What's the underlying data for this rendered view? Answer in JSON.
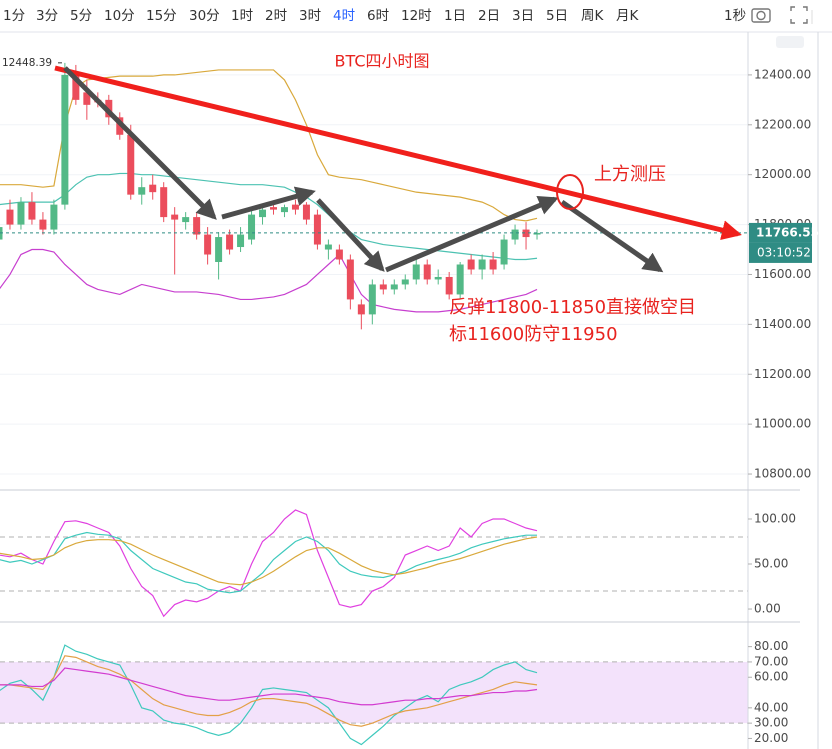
{
  "toolbar": {
    "intervals": [
      "1分",
      "3分",
      "5分",
      "10分",
      "15分",
      "30分",
      "1时",
      "2时",
      "3时",
      "4时",
      "6时",
      "12时",
      "1日",
      "2日",
      "3日",
      "5日",
      "周K",
      "月K"
    ],
    "active": "4时",
    "active_color": "#2962ff",
    "timer": "1秒"
  },
  "chart_data": [
    {
      "type": "candlestick",
      "title": "BTC四小时图",
      "annotations": [
        "上方测压",
        "反弹11800-11850直接做空目",
        "标11600防守11950"
      ],
      "categories": [
        null,
        null,
        null,
        null,
        null,
        null,
        null,
        null,
        null,
        null,
        null,
        null,
        null,
        null,
        null,
        null,
        null,
        null,
        null,
        null,
        null,
        null,
        null,
        null,
        null,
        null,
        null,
        null,
        null,
        null,
        null,
        null,
        null,
        null,
        null,
        null,
        null,
        null,
        null,
        null,
        null,
        null,
        null,
        null,
        null,
        null,
        null,
        null,
        null,
        null
      ],
      "open": [
        11740,
        11860,
        11800,
        11890,
        11820,
        11780,
        11880,
        12400,
        12330,
        12300,
        12300,
        12230,
        12160,
        11920,
        11960,
        11950,
        11840,
        11810,
        11830,
        11760,
        11650,
        11760,
        11710,
        11740,
        11830,
        11870,
        11850,
        11880,
        11880,
        11840,
        11700,
        11700,
        11660,
        11480,
        11440,
        11560,
        11540,
        11560,
        11580,
        11640,
        11580,
        11590,
        11520,
        11660,
        11620,
        11660,
        11640,
        11740,
        11780,
        11760
      ],
      "high": [
        11800,
        11900,
        11910,
        11930,
        11850,
        11900,
        12448.39,
        12440,
        12380,
        12330,
        12320,
        12250,
        12200,
        11990,
        12000,
        11970,
        11870,
        11850,
        11850,
        11790,
        11770,
        11780,
        11790,
        11860,
        11880,
        11890,
        11880,
        11900,
        11890,
        11860,
        11740,
        11720,
        11680,
        11500,
        11580,
        11580,
        11580,
        11600,
        11660,
        11660,
        11620,
        11610,
        11650,
        11680,
        11680,
        11690,
        11760,
        11800,
        11810,
        11780
      ],
      "low": [
        11720,
        11780,
        11780,
        11800,
        11760,
        11760,
        11860,
        12280,
        12220,
        12270,
        12200,
        12140,
        11900,
        11880,
        11900,
        11810,
        11600,
        11780,
        11740,
        11640,
        11580,
        11680,
        11690,
        11720,
        11800,
        11840,
        11830,
        11840,
        11800,
        11700,
        11660,
        11640,
        11460,
        11380,
        11400,
        11520,
        11520,
        11540,
        11560,
        11560,
        11560,
        11500,
        11500,
        11600,
        11580,
        11600,
        11620,
        11720,
        11700,
        11740
      ],
      "close": [
        11790,
        11800,
        11890,
        11820,
        11780,
        11880,
        12400,
        12300,
        12280,
        12290,
        12230,
        12160,
        11920,
        11950,
        11930,
        11830,
        11820,
        11830,
        11760,
        11680,
        11750,
        11700,
        11760,
        11840,
        11860,
        11860,
        11870,
        11860,
        11820,
        11720,
        11720,
        11660,
        11500,
        11440,
        11560,
        11540,
        11560,
        11580,
        11640,
        11580,
        11590,
        11520,
        11640,
        11620,
        11660,
        11620,
        11740,
        11780,
        11750,
        11766.55
      ],
      "up_color": "#53b987",
      "down_color": "#eb4d5c",
      "series": [
        {
          "color": "#d9a93c",
          "values": [
            11960,
            11960,
            11960,
            11955,
            11950,
            11955,
            12200,
            12350,
            12380,
            12385,
            12390,
            12395,
            12395,
            12395,
            12395,
            12400,
            12400,
            12405,
            12410,
            12415,
            12420,
            12420,
            12420,
            12420,
            12420,
            12420,
            12380,
            12300,
            12200,
            12080,
            12000,
            11990,
            11985,
            11980,
            11970,
            11960,
            11950,
            11940,
            11930,
            11925,
            11920,
            11915,
            11910,
            11900,
            11890,
            11870,
            11840,
            11820,
            11815,
            11825
          ]
        },
        {
          "color": "#4cc2b2",
          "values": [
            11880,
            11885,
            11890,
            11890,
            11890,
            11890,
            11920,
            11960,
            11990,
            12000,
            12000,
            12005,
            12005,
            12000,
            12000,
            11995,
            11990,
            11985,
            11980,
            11975,
            11970,
            11965,
            11960,
            11960,
            11960,
            11955,
            11950,
            11930,
            11910,
            11880,
            11840,
            11800,
            11770,
            11740,
            11730,
            11720,
            11715,
            11710,
            11705,
            11700,
            11695,
            11690,
            11685,
            11680,
            11675,
            11670,
            11665,
            11660,
            11660,
            11665
          ]
        },
        {
          "color": "#c73fcf",
          "values": [
            11540,
            11600,
            11680,
            11700,
            11700,
            11690,
            11640,
            11600,
            11560,
            11540,
            11530,
            11520,
            11540,
            11560,
            11550,
            11540,
            11530,
            11530,
            11530,
            11525,
            11520,
            11510,
            11500,
            11500,
            11505,
            11510,
            11520,
            11540,
            11560,
            11600,
            11640,
            11680,
            11600,
            11520,
            11480,
            11470,
            11460,
            11455,
            11450,
            11450,
            11450,
            11455,
            11460,
            11470,
            11480,
            11490,
            11500,
            11510,
            11520,
            11540
          ]
        }
      ],
      "ylim": [
        10736,
        12560
      ],
      "yticks": [
        {
          "value": 12400,
          "label": "12400.00"
        },
        {
          "value": 12200,
          "label": "12200.00"
        },
        {
          "value": 12000,
          "label": "12000.00"
        },
        {
          "value": 11800,
          "label": "11800.00"
        },
        {
          "value": 11600,
          "label": "11600.00"
        },
        {
          "value": 11400,
          "label": "11400.00"
        },
        {
          "value": 11200,
          "label": "11200.00"
        },
        {
          "value": 11000,
          "label": "11000.00"
        },
        {
          "value": 10800,
          "label": "10800.00"
        }
      ],
      "high_marker": 12448.39,
      "last_price": 11766.55,
      "last_price_color": "#2f8c84",
      "countdown": "03:10:52",
      "grid": true
    },
    {
      "type": "line",
      "series": [
        {
          "color": "#e040e0",
          "values": [
            60,
            58,
            62,
            55,
            50,
            75,
            97,
            98,
            95,
            90,
            85,
            70,
            45,
            25,
            15,
            -8,
            5,
            10,
            8,
            12,
            20,
            25,
            20,
            50,
            75,
            85,
            100,
            110,
            105,
            65,
            35,
            5,
            2,
            5,
            20,
            25,
            35,
            60,
            65,
            70,
            65,
            70,
            90,
            80,
            95,
            100,
            100,
            95,
            90,
            87
          ]
        },
        {
          "color": "#3fc9bd",
          "values": [
            55,
            52,
            54,
            50,
            55,
            60,
            78,
            82,
            85,
            83,
            82,
            78,
            65,
            55,
            45,
            40,
            35,
            30,
            28,
            22,
            20,
            18,
            20,
            30,
            40,
            55,
            65,
            75,
            80,
            75,
            65,
            50,
            42,
            38,
            36,
            35,
            38,
            42,
            48,
            52,
            55,
            58,
            62,
            68,
            72,
            75,
            78,
            80,
            82,
            82
          ]
        },
        {
          "color": "#d9a93c",
          "values": [
            62,
            60,
            58,
            55,
            56,
            60,
            68,
            73,
            76,
            77,
            77,
            76,
            72,
            66,
            60,
            55,
            50,
            45,
            40,
            35,
            30,
            28,
            27,
            30,
            35,
            42,
            50,
            58,
            65,
            68,
            68,
            62,
            55,
            48,
            43,
            40,
            38,
            40,
            43,
            46,
            50,
            53,
            56,
            60,
            64,
            68,
            72,
            75,
            78,
            80
          ]
        }
      ],
      "ylim": [
        -14.4,
        132.2
      ],
      "yticks": [
        {
          "value": 100,
          "label": "100.00"
        },
        {
          "value": 50,
          "label": "50.00"
        },
        {
          "value": 0,
          "label": "0.00"
        }
      ],
      "levels": [
        80,
        20
      ]
    },
    {
      "type": "line",
      "series": [
        {
          "color": "#3fc9bd",
          "values": [
            51,
            56,
            58,
            52,
            45,
            60,
            81,
            77,
            75,
            72,
            70,
            68,
            55,
            40,
            38,
            32,
            30,
            29,
            27,
            24,
            22,
            24,
            30,
            40,
            52,
            53,
            52,
            51,
            50,
            45,
            40,
            30,
            20,
            16,
            22,
            28,
            35,
            40,
            45,
            48,
            44,
            52,
            55,
            57,
            60,
            65,
            68,
            70,
            65,
            63
          ]
        },
        {
          "color": "#e3a048",
          "values": [
            55,
            55,
            54,
            53,
            52,
            60,
            74,
            73,
            70,
            67,
            65,
            62,
            58,
            52,
            46,
            42,
            40,
            38,
            36,
            35,
            35,
            37,
            40,
            44,
            46,
            46,
            45,
            44,
            43,
            40,
            36,
            32,
            29,
            28,
            30,
            33,
            36,
            38,
            39,
            40,
            42,
            44,
            46,
            48,
            50,
            52,
            55,
            57,
            56,
            55
          ]
        },
        {
          "color": "#d23bd0",
          "values": [
            55,
            55,
            55,
            54,
            54,
            58,
            66,
            65,
            64,
            63,
            62,
            60,
            58,
            56,
            54,
            52,
            50,
            48,
            47,
            46,
            45,
            45,
            46,
            47,
            48,
            49,
            49,
            49,
            48,
            47,
            46,
            44,
            43,
            42,
            42,
            43,
            44,
            45,
            45,
            46,
            46,
            47,
            48,
            48,
            49,
            50,
            50,
            51,
            51,
            52
          ]
        }
      ],
      "ylim": [
        13.1,
        96.1
      ],
      "yticks": [
        {
          "value": 80,
          "label": "80.00"
        },
        {
          "value": 70,
          "label": "70.00"
        },
        {
          "value": 60,
          "label": "60.00"
        },
        {
          "value": 40,
          "label": "40.00"
        },
        {
          "value": 30,
          "label": "30.00"
        },
        {
          "value": 20,
          "label": "20.00"
        }
      ],
      "band": [
        30,
        70
      ],
      "band_color": "#f3e2fb"
    }
  ]
}
